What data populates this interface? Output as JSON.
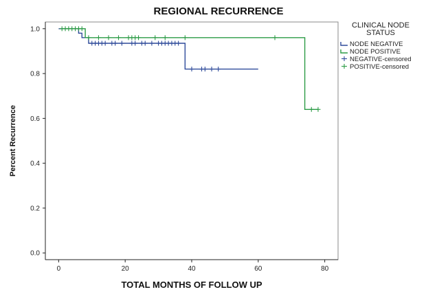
{
  "chart_data": {
    "type": "line",
    "title": "REGIONAL RECURRENCE",
    "xlabel": "TOTAL MONTHS OF FOLLOW UP",
    "ylabel": "Percent Recurrence",
    "xlim": [
      -4,
      84
    ],
    "ylim": [
      -0.03,
      1.03
    ],
    "x_ticks": [
      0,
      20,
      40,
      60,
      80
    ],
    "y_ticks": [
      0.0,
      0.2,
      0.4,
      0.6,
      0.8,
      1.0
    ],
    "y_tick_labels": [
      "0.0",
      "0.2",
      "0.4",
      "0.6",
      "0.8",
      "1.0"
    ],
    "legend": {
      "title_lines": [
        "CLINICAL NODE",
        "STATUS"
      ],
      "placement": "right",
      "entries": [
        {
          "label": "NODE NEGATIVE",
          "kind": "line",
          "color": "#2e4a9a"
        },
        {
          "label": "NODE POSITIVE",
          "kind": "line",
          "color": "#2b9b45"
        },
        {
          "label": "NEGATIVE-censored",
          "kind": "cross",
          "color": "#2e4a9a"
        },
        {
          "label": "POSITIVE-censored",
          "kind": "cross",
          "color": "#2b9b45"
        }
      ]
    },
    "series": [
      {
        "name": "NODE NEGATIVE",
        "color": "#2e4a9a",
        "steps": [
          [
            0,
            1.0
          ],
          [
            6,
            0.98
          ],
          [
            7,
            0.96
          ],
          [
            9,
            0.935
          ],
          [
            38,
            0.82
          ],
          [
            60,
            0.82
          ]
        ],
        "censored": [
          [
            10,
            0.935
          ],
          [
            11,
            0.935
          ],
          [
            12,
            0.935
          ],
          [
            13,
            0.935
          ],
          [
            14,
            0.935
          ],
          [
            16,
            0.935
          ],
          [
            17,
            0.935
          ],
          [
            19,
            0.935
          ],
          [
            22,
            0.935
          ],
          [
            23,
            0.935
          ],
          [
            25,
            0.935
          ],
          [
            26,
            0.935
          ],
          [
            28,
            0.935
          ],
          [
            30,
            0.935
          ],
          [
            31,
            0.935
          ],
          [
            32,
            0.935
          ],
          [
            33,
            0.935
          ],
          [
            34,
            0.935
          ],
          [
            35,
            0.935
          ],
          [
            36,
            0.935
          ],
          [
            40,
            0.82
          ],
          [
            43,
            0.82
          ],
          [
            44,
            0.82
          ],
          [
            46,
            0.82
          ],
          [
            48,
            0.82
          ]
        ]
      },
      {
        "name": "NODE POSITIVE",
        "color": "#2b9b45",
        "steps": [
          [
            1,
            1.0
          ],
          [
            8,
            0.96
          ],
          [
            74,
            0.64
          ],
          [
            78,
            0.64
          ]
        ],
        "censored": [
          [
            1,
            1.0
          ],
          [
            2,
            1.0
          ],
          [
            3,
            1.0
          ],
          [
            4,
            1.0
          ],
          [
            5,
            1.0
          ],
          [
            6,
            1.0
          ],
          [
            7,
            1.0
          ],
          [
            9,
            0.96
          ],
          [
            12,
            0.96
          ],
          [
            15,
            0.96
          ],
          [
            18,
            0.96
          ],
          [
            21,
            0.96
          ],
          [
            22,
            0.96
          ],
          [
            23,
            0.96
          ],
          [
            24,
            0.96
          ],
          [
            29,
            0.96
          ],
          [
            32,
            0.96
          ],
          [
            38,
            0.96
          ],
          [
            65,
            0.96
          ],
          [
            76,
            0.64
          ],
          [
            78,
            0.64
          ]
        ]
      }
    ],
    "colors": {
      "frame": "#8a8a8a",
      "axis": "#222222",
      "background": "#ffffff"
    }
  }
}
